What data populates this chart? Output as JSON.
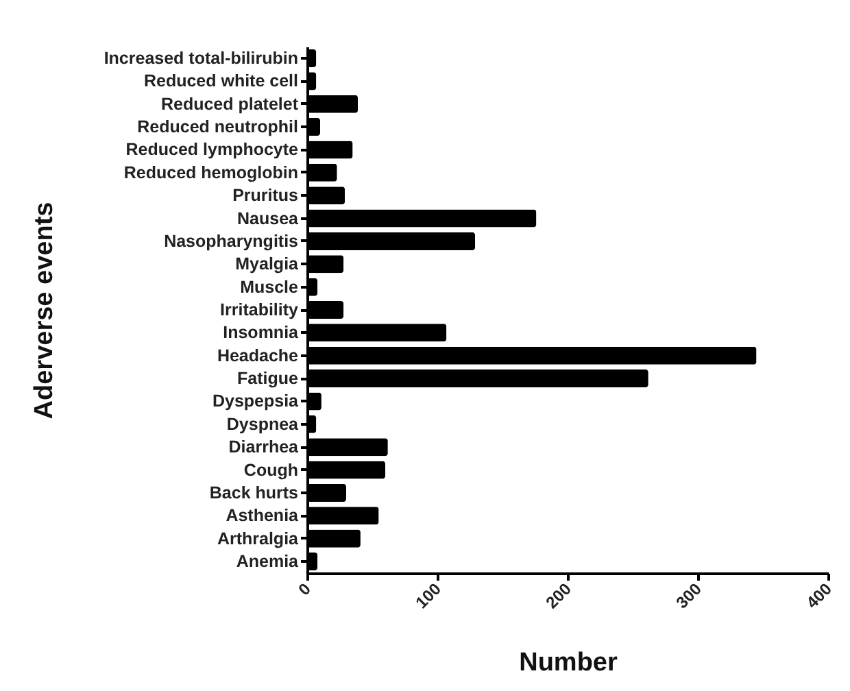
{
  "chart_data": {
    "type": "bar",
    "orientation": "horizontal",
    "xlabel": "Number",
    "ylabel": "Aderverse events",
    "categories": [
      "Increased total-bilirubin",
      "Reduced white cell",
      "Reduced platelet",
      "Reduced neutrophil",
      "Reduced lymphocyte",
      "Reduced hemoglobin",
      "Pruritus",
      "Nausea",
      "Nasopharyngitis",
      "Myalgia",
      "Muscle",
      "Irritability",
      "Insomnia",
      "Headache",
      "Fatigue",
      "Dyspepsia",
      "Dyspnea",
      "Diarrhea",
      "Cough",
      "Back hurts",
      "Asthenia",
      "Arthralgia",
      "Anemia"
    ],
    "values": [
      7,
      7,
      39,
      10,
      35,
      23,
      29,
      176,
      129,
      28,
      8,
      28,
      107,
      345,
      262,
      11,
      7,
      62,
      60,
      30,
      55,
      41,
      8
    ],
    "color": "#000000",
    "xlim": [
      0,
      400
    ],
    "xticks": [
      0,
      100,
      200,
      300,
      400
    ],
    "grid": false
  }
}
